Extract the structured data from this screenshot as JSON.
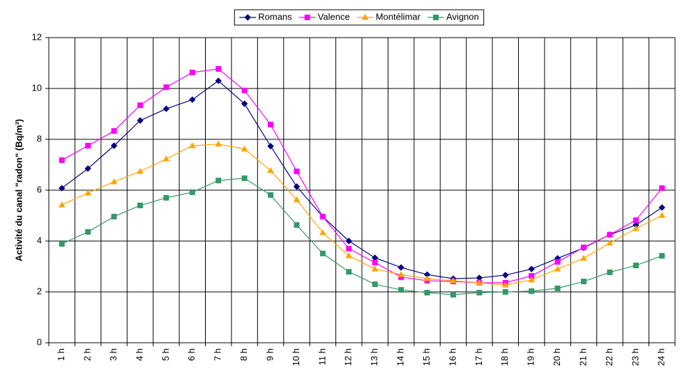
{
  "chart_data": {
    "type": "line",
    "y_label": "Activité du canal \"radon\" (Bq/m³)",
    "categories": [
      "1 h",
      "2 h",
      "3 h",
      "4 h",
      "5 h",
      "6 h",
      "7 h",
      "8 h",
      "9 h",
      "10 h",
      "11 h",
      "12 h",
      "13 h",
      "14 h",
      "15 h",
      "16 h",
      "17 h",
      "18 h",
      "19 h",
      "20 h",
      "21 h",
      "22 h",
      "23 h",
      "24 h"
    ],
    "series": [
      {
        "name": "Romans",
        "color": "#000080",
        "marker": "diamond",
        "values": [
          6.08,
          6.85,
          7.75,
          8.74,
          9.2,
          9.56,
          10.3,
          9.4,
          7.73,
          6.14,
          4.96,
          4.0,
          3.34,
          2.96,
          2.68,
          2.52,
          2.55,
          2.66,
          2.9,
          3.32,
          3.73,
          4.25,
          4.63,
          5.32
        ]
      },
      {
        "name": "Valence",
        "color": "#ff00ff",
        "marker": "square",
        "values": [
          7.18,
          7.75,
          8.33,
          9.34,
          10.05,
          10.63,
          10.77,
          9.92,
          8.58,
          6.74,
          4.96,
          3.7,
          3.15,
          2.58,
          2.44,
          2.41,
          2.36,
          2.36,
          2.63,
          3.18,
          3.75,
          4.25,
          4.82,
          6.08
        ]
      },
      {
        "name": "Montélimar",
        "color": "#ffa500",
        "marker": "triangle",
        "values": [
          5.42,
          5.89,
          6.33,
          6.74,
          7.23,
          7.75,
          7.81,
          7.62,
          6.77,
          5.62,
          4.33,
          3.42,
          2.9,
          2.68,
          2.52,
          2.44,
          2.36,
          2.27,
          2.47,
          2.9,
          3.32,
          3.92,
          4.49,
          5.01
        ]
      },
      {
        "name": "Avignon",
        "color": "#339966",
        "marker": "square",
        "values": [
          3.89,
          4.36,
          4.96,
          5.4,
          5.7,
          5.92,
          6.38,
          6.47,
          5.81,
          4.63,
          3.51,
          2.79,
          2.3,
          2.08,
          1.97,
          1.89,
          1.97,
          2.0,
          2.03,
          2.14,
          2.41,
          2.77,
          3.04,
          3.42
        ]
      }
    ],
    "ylim": [
      0,
      12
    ],
    "yticks": [
      0,
      2,
      4,
      6,
      8,
      10,
      12
    ],
    "grid": true,
    "legend": "top"
  }
}
